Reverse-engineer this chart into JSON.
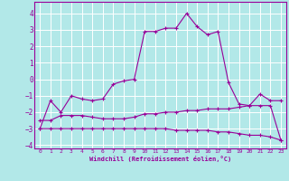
{
  "xlabel": "Windchill (Refroidissement éolien,°C)",
  "background_color": "#b2e8e8",
  "grid_color": "#ffffff",
  "line_color": "#990099",
  "xlim": [
    -0.5,
    23.5
  ],
  "ylim": [
    -4.2,
    4.7
  ],
  "yticks": [
    -4,
    -3,
    -2,
    -1,
    0,
    1,
    2,
    3,
    4
  ],
  "xticks": [
    0,
    1,
    2,
    3,
    4,
    5,
    6,
    7,
    8,
    9,
    10,
    11,
    12,
    13,
    14,
    15,
    16,
    17,
    18,
    19,
    20,
    21,
    22,
    23
  ],
  "line1_x": [
    0,
    1,
    2,
    3,
    4,
    5,
    6,
    7,
    8,
    9,
    10,
    11,
    12,
    13,
    14,
    15,
    16,
    17,
    18,
    19,
    20,
    21,
    22,
    23
  ],
  "line1_y": [
    -3.0,
    -1.3,
    -2.0,
    -1.0,
    -1.2,
    -1.3,
    -1.2,
    -0.3,
    -0.1,
    0.0,
    2.9,
    2.9,
    3.1,
    3.1,
    4.0,
    3.2,
    2.7,
    2.9,
    -0.2,
    -1.5,
    -1.6,
    -0.9,
    -1.3,
    -1.3
  ],
  "line2_x": [
    0,
    1,
    2,
    3,
    4,
    5,
    6,
    7,
    8,
    9,
    10,
    11,
    12,
    13,
    14,
    15,
    16,
    17,
    18,
    19,
    20,
    21,
    22,
    23
  ],
  "line2_y": [
    -2.5,
    -2.5,
    -2.2,
    -2.2,
    -2.2,
    -2.3,
    -2.4,
    -2.4,
    -2.4,
    -2.3,
    -2.1,
    -2.1,
    -2.0,
    -2.0,
    -1.9,
    -1.9,
    -1.8,
    -1.8,
    -1.8,
    -1.7,
    -1.6,
    -1.6,
    -1.6,
    -3.7
  ],
  "line3_x": [
    0,
    1,
    2,
    3,
    4,
    5,
    6,
    7,
    8,
    9,
    10,
    11,
    12,
    13,
    14,
    15,
    16,
    17,
    18,
    19,
    20,
    21,
    22,
    23
  ],
  "line3_y": [
    -3.0,
    -3.0,
    -3.0,
    -3.0,
    -3.0,
    -3.0,
    -3.0,
    -3.0,
    -3.0,
    -3.0,
    -3.0,
    -3.0,
    -3.0,
    -3.1,
    -3.1,
    -3.1,
    -3.1,
    -3.2,
    -3.2,
    -3.3,
    -3.4,
    -3.4,
    -3.5,
    -3.7
  ]
}
